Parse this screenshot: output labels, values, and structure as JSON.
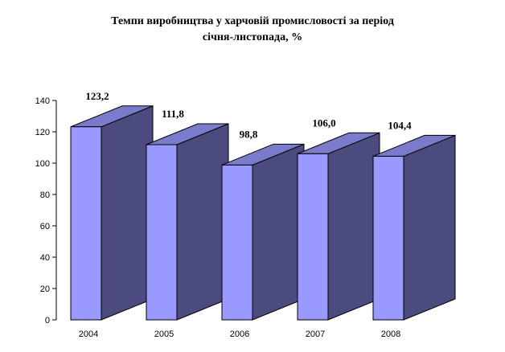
{
  "chart_data": {
    "type": "bar",
    "title_line1": "Темпи виробництва у харчовій промисловості за період",
    "title_line2": "січня-листопада, %",
    "categories": [
      "2004",
      "2005",
      "2006",
      "2007",
      "2008"
    ],
    "values": [
      123.2,
      111.8,
      98.8,
      106.0,
      104.4
    ],
    "value_labels": [
      "123,2",
      "111,8",
      "98,8",
      "106,0",
      "104,4"
    ],
    "ylim": [
      0,
      140
    ],
    "yticks": [
      0,
      20,
      40,
      60,
      80,
      100,
      120,
      140
    ],
    "xlabel": "",
    "ylabel": "",
    "grid": false,
    "style": "3d-bar",
    "colors": {
      "front": "#9999ff",
      "side": "#4b4b80",
      "top": "#7b7bcc",
      "outline": "#000000"
    }
  }
}
